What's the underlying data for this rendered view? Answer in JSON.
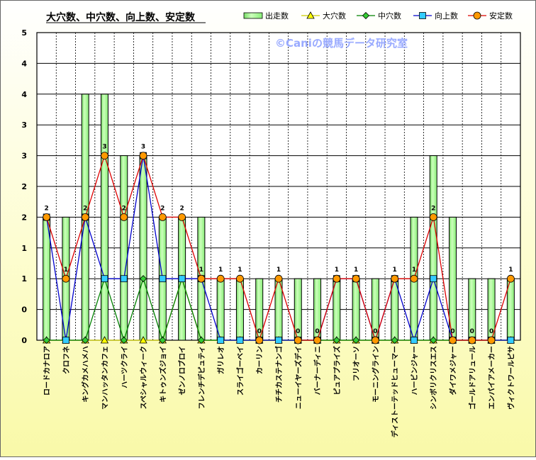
{
  "chart_data": {
    "type": "bar+line",
    "title": "大穴数、中穴数、向上数、安定数",
    "watermark": "©Caniの競馬データ研究室",
    "ylim": [
      0,
      5
    ],
    "y_ticks": [
      "0",
      "1",
      "1",
      "2",
      "2",
      "3",
      "3",
      "4",
      "4",
      "5"
    ],
    "categories": [
      "ロードカナロア",
      "クロフネ",
      "キングカメハメハ",
      "マンハッタンカフェ",
      "ハーツクライ",
      "スペシャルウィーク",
      "キトゥンズジョイ",
      "ゼンノロブロイ",
      "フレンチデピュティ",
      "ガリレオ",
      "スライゴーベイ",
      "カーリン",
      "チチカステナンゴ",
      "ニューイヤーズデイ",
      "バーナーディニ",
      "ピュアプライズ",
      "フリオーソ",
      "モーニングライン",
      "ディストーテッドヒューマー",
      "ハービンジャー",
      "シンボリクリスエス",
      "ダイワメジャー",
      "ゴールドアリュール",
      "エンパイアメーカー",
      "ヴィクトワールピサ"
    ],
    "series": [
      {
        "name": "出走数",
        "kind": "bar",
        "color": "#aaff99",
        "values": [
          2,
          2,
          4,
          4,
          3,
          3,
          2,
          2,
          2,
          1,
          1,
          1,
          1,
          1,
          1,
          1,
          1,
          1,
          1,
          2,
          3,
          2,
          1,
          1,
          1
        ]
      },
      {
        "name": "大穴数",
        "kind": "line",
        "color": "#cccc00",
        "marker": "triangle",
        "marker_color": "#ffff00",
        "values": [
          0,
          0,
          0,
          0,
          0,
          0,
          0,
          1,
          0,
          0,
          0,
          0,
          0,
          0,
          0,
          0,
          0,
          0,
          0,
          0,
          0,
          0,
          0,
          0,
          0
        ]
      },
      {
        "name": "中穴数",
        "kind": "line",
        "color": "#008000",
        "marker": "diamond",
        "marker_color": "#33cc33",
        "values": [
          0,
          0,
          0,
          1,
          0,
          1,
          0,
          1,
          0,
          0,
          0,
          0,
          0,
          0,
          0,
          0,
          0,
          0,
          0,
          0,
          0,
          0,
          0,
          0,
          0
        ]
      },
      {
        "name": "向上数",
        "kind": "line",
        "color": "#0000cc",
        "marker": "square",
        "marker_color": "#33ccff",
        "values": [
          2,
          0,
          2,
          1,
          1,
          3,
          1,
          1,
          1,
          0,
          0,
          0,
          0,
          0,
          0,
          1,
          1,
          0,
          1,
          0,
          1,
          0,
          0,
          0,
          0
        ]
      },
      {
        "name": "安定数",
        "kind": "line",
        "color": "#dd0000",
        "marker": "circle",
        "marker_color": "#ff9900",
        "values": [
          2,
          1,
          2,
          3,
          2,
          3,
          2,
          2,
          1,
          1,
          1,
          0,
          1,
          0,
          0,
          1,
          1,
          0,
          1,
          1,
          2,
          0,
          0,
          0,
          1
        ],
        "labels": [
          "2",
          "1",
          "2",
          "3",
          "2",
          "3",
          "2",
          "2",
          "1",
          "1",
          "1",
          "0",
          "1",
          "0",
          "0",
          "1",
          "1",
          "0",
          "1",
          "1",
          "2",
          "0",
          "0",
          "0",
          "1"
        ]
      }
    ],
    "legend_position": "top-right",
    "grid": true
  }
}
